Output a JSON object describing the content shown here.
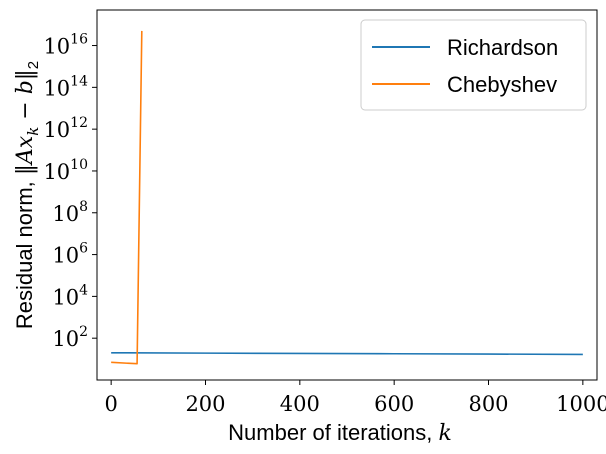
{
  "chart_data": {
    "type": "line",
    "xlabel": "Number of iterations, k",
    "ylabel": "Residual norm, ||Ax_k - b||_2",
    "xlabel_parts": {
      "text": "Number of iterations, ",
      "math": "k"
    },
    "ylabel_parts": {
      "text": "Residual norm, ",
      "math": "‖Ax",
      "sub": "k",
      "math2": " − b‖",
      "sub2": "2"
    },
    "xlim": [
      -30,
      1030
    ],
    "ylim_log10": [
      0.0,
      17.7
    ],
    "yscale": "log",
    "grid": false,
    "legend_position": "top-right",
    "x_ticks": [
      {
        "value": 0,
        "label": "0"
      },
      {
        "value": 200,
        "label": "200"
      },
      {
        "value": 400,
        "label": "400"
      },
      {
        "value": 600,
        "label": "600"
      },
      {
        "value": 800,
        "label": "800"
      },
      {
        "value": 1000,
        "label": "1000"
      }
    ],
    "y_ticks": [
      {
        "exp": 2,
        "base": "10",
        "sup": "2"
      },
      {
        "exp": 4,
        "base": "10",
        "sup": "4"
      },
      {
        "exp": 6,
        "base": "10",
        "sup": "6"
      },
      {
        "exp": 8,
        "base": "10",
        "sup": "8"
      },
      {
        "exp": 10,
        "base": "10",
        "sup": "10"
      },
      {
        "exp": 12,
        "base": "10",
        "sup": "12"
      },
      {
        "exp": 14,
        "base": "10",
        "sup": "14"
      },
      {
        "exp": 16,
        "base": "10",
        "sup": "16"
      }
    ],
    "series": [
      {
        "name": "Richardson",
        "color": "#1f77b4",
        "x": [
          0,
          200,
          400,
          600,
          800,
          1000
        ],
        "y": [
          20.0,
          19.3,
          18.6,
          18.0,
          17.4,
          16.8
        ]
      },
      {
        "name": "Chebyshev",
        "color": "#ff7f0e",
        "x": [
          0,
          55,
          65
        ],
        "y": [
          7.0,
          6.0,
          5e+16
        ]
      }
    ]
  }
}
